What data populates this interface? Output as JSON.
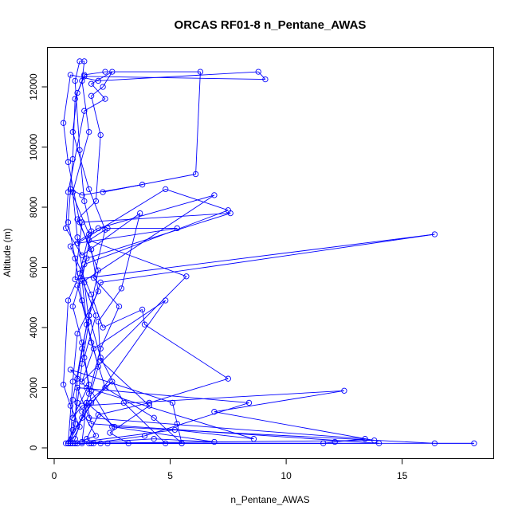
{
  "chart_data": {
    "type": "line",
    "title": "ORCAS RF01-8 n_Pentane_AWAS",
    "xlabel": "n_Pentane_AWAS",
    "ylabel": "Altitude (m)",
    "xlim": [
      0,
      19
    ],
    "ylim": [
      0,
      13000
    ],
    "xticks": [
      0,
      5,
      10,
      15
    ],
    "yticks": [
      0,
      2000,
      4000,
      6000,
      8000,
      10000,
      12000
    ],
    "grid": false,
    "legend": "none",
    "marker": "open-circle",
    "series": [
      {
        "color": "#0000ff",
        "points": [
          [
            0.6,
            150
          ],
          [
            0.8,
            600
          ],
          [
            1.0,
            1500
          ],
          [
            1.2,
            2800
          ],
          [
            1.5,
            4200
          ],
          [
            1.3,
            5500
          ],
          [
            1.0,
            7000
          ],
          [
            0.8,
            8500
          ],
          [
            1.5,
            10500
          ],
          [
            1.2,
            12200
          ],
          [
            1.3,
            12850
          ],
          [
            1.1,
            12850
          ],
          [
            0.9,
            12200
          ],
          [
            1.1,
            9900
          ],
          [
            1.3,
            8200
          ],
          [
            1.6,
            7200
          ],
          [
            1.2,
            5600
          ],
          [
            1.4,
            4100
          ],
          [
            1.0,
            2300
          ],
          [
            0.9,
            800
          ],
          [
            0.7,
            150
          ],
          [
            2.0,
            150
          ],
          [
            5.5,
            150
          ],
          [
            4.3,
            1000
          ],
          [
            2.2,
            2000
          ],
          [
            1.6,
            3500
          ],
          [
            1.2,
            4900
          ],
          [
            0.9,
            6300
          ],
          [
            0.6,
            7500
          ],
          [
            0.8,
            9600
          ],
          [
            0.9,
            11600
          ],
          [
            1.3,
            12400
          ],
          [
            2.2,
            12500
          ],
          [
            6.3,
            12500
          ],
          [
            6.1,
            9100
          ],
          [
            2.1,
            8500
          ],
          [
            3.8,
            8750
          ],
          [
            1.2,
            8400
          ],
          [
            0.7,
            8600
          ],
          [
            1.5,
            7100
          ],
          [
            1.1,
            5800
          ],
          [
            1.8,
            4400
          ],
          [
            1.3,
            3000
          ],
          [
            1.6,
            1500
          ],
          [
            0.6,
            150
          ],
          [
            2.3,
            150
          ],
          [
            4.8,
            150
          ],
          [
            3.0,
            1500
          ],
          [
            2.0,
            3000
          ],
          [
            1.5,
            4400
          ],
          [
            1.9,
            5900
          ],
          [
            1.1,
            7500
          ],
          [
            0.6,
            9500
          ],
          [
            0.4,
            10800
          ],
          [
            0.7,
            12400
          ],
          [
            1.9,
            12200
          ],
          [
            8.8,
            12500
          ],
          [
            9.1,
            12250
          ],
          [
            1.3,
            12350
          ],
          [
            1.0,
            11800
          ],
          [
            0.8,
            10500
          ],
          [
            1.5,
            8600
          ],
          [
            2.2,
            7250
          ],
          [
            1.7,
            5650
          ],
          [
            2.8,
            4700
          ],
          [
            2.0,
            3300
          ],
          [
            1.5,
            1800
          ],
          [
            0.9,
            300
          ],
          [
            0.8,
            150
          ],
          [
            3.2,
            150
          ],
          [
            2.4,
            500
          ],
          [
            4.1,
            1400
          ],
          [
            2.0,
            2900
          ],
          [
            1.9,
            4200
          ],
          [
            2.9,
            5300
          ],
          [
            3.7,
            7800
          ],
          [
            1.2,
            6400
          ],
          [
            0.5,
            7300
          ],
          [
            0.6,
            8500
          ],
          [
            1.3,
            11200
          ],
          [
            2.2,
            11600
          ],
          [
            1.6,
            12100
          ],
          [
            2.5,
            12500
          ],
          [
            2.1,
            12000
          ],
          [
            1.6,
            11700
          ],
          [
            2.0,
            10400
          ],
          [
            1.8,
            8200
          ],
          [
            1.0,
            7600
          ],
          [
            1.6,
            6600
          ],
          [
            1.9,
            5200
          ],
          [
            1.0,
            3800
          ],
          [
            0.8,
            2200
          ],
          [
            0.6,
            150
          ],
          [
            1.0,
            150
          ],
          [
            4.3,
            300
          ],
          [
            6.9,
            200
          ],
          [
            2.5,
            700
          ],
          [
            1.6,
            1900
          ],
          [
            1.9,
            2700
          ],
          [
            1.0,
            5400
          ],
          [
            6.9,
            8400
          ],
          [
            1.9,
            7300
          ],
          [
            0.7,
            6700
          ],
          [
            1.6,
            5100
          ],
          [
            2.1,
            4000
          ],
          [
            3.8,
            4600
          ],
          [
            3.9,
            4100
          ],
          [
            7.5,
            2300
          ],
          [
            4.1,
            1500
          ],
          [
            1.9,
            1100
          ],
          [
            1.4,
            300
          ],
          [
            1.7,
            150
          ],
          [
            1.0,
            150
          ],
          [
            13.8,
            250
          ],
          [
            6.9,
            1200
          ],
          [
            12.5,
            1900
          ],
          [
            1.2,
            1400
          ],
          [
            0.8,
            1000
          ],
          [
            1.5,
            2100
          ],
          [
            1.2,
            3500
          ],
          [
            0.8,
            4700
          ],
          [
            1.4,
            6300
          ],
          [
            7.6,
            7800
          ],
          [
            1.2,
            7500
          ],
          [
            0.9,
            5600
          ],
          [
            16.4,
            7100
          ],
          [
            2.0,
            5500
          ],
          [
            1.5,
            4400
          ],
          [
            1.2,
            3300
          ],
          [
            0.8,
            1600
          ],
          [
            0.7,
            150
          ],
          [
            1.2,
            150
          ],
          [
            18.1,
            150
          ],
          [
            16.4,
            150
          ],
          [
            2.6,
            700
          ],
          [
            1.4,
            1500
          ],
          [
            2.5,
            2200
          ],
          [
            1.2,
            1200
          ],
          [
            1.8,
            400
          ],
          [
            0.9,
            150
          ],
          [
            1.5,
            150
          ],
          [
            11.6,
            150
          ],
          [
            12.1,
            200
          ],
          [
            13.4,
            300
          ],
          [
            1.5,
            1000
          ],
          [
            1.0,
            2000
          ],
          [
            8.4,
            1500
          ],
          [
            3.9,
            400
          ],
          [
            1.6,
            150
          ],
          [
            14.0,
            150
          ],
          [
            1.6,
            800
          ],
          [
            1.4,
            1500
          ],
          [
            1.2,
            200
          ],
          [
            5.2,
            600
          ],
          [
            8.6,
            300
          ],
          [
            1.4,
            2000
          ],
          [
            0.7,
            2600
          ],
          [
            5.1,
            1500
          ],
          [
            5.3,
            800
          ],
          [
            5.5,
            150
          ],
          [
            0.9,
            150
          ],
          [
            0.5,
            150
          ],
          [
            1.2,
            1000
          ],
          [
            4.8,
            4900
          ],
          [
            1.7,
            3300
          ],
          [
            1.2,
            2200
          ],
          [
            5.7,
            5700
          ],
          [
            1.5,
            6900
          ],
          [
            2.3,
            7300
          ],
          [
            5.3,
            7300
          ],
          [
            1.0,
            6800
          ],
          [
            4.8,
            8600
          ],
          [
            7.5,
            7900
          ],
          [
            1.3,
            6100
          ],
          [
            0.6,
            4900
          ],
          [
            0.4,
            2100
          ],
          [
            0.7,
            1400
          ],
          [
            1.1,
            700
          ],
          [
            0.7,
            150
          ]
        ]
      }
    ]
  }
}
